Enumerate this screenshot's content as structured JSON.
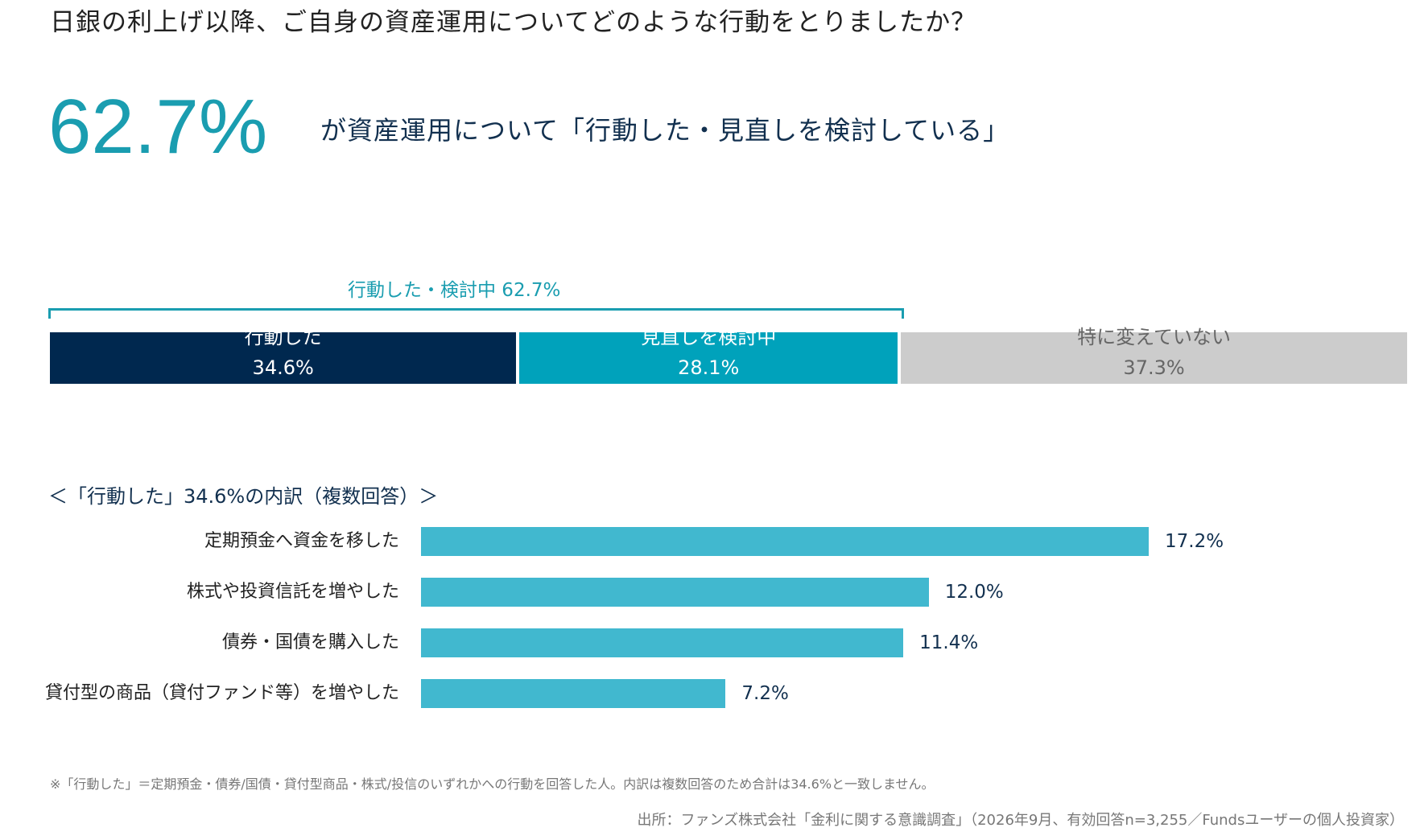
{
  "question": "日銀の利上げ以降、ご自身の資産運用についてどのような行動をとりましたか？",
  "headline": {
    "percent": "62.7%",
    "text": "が資産運用について「行動した・見直しを検討している」"
  },
  "stacked_bar": {
    "bracket_label": "行動した・検討中 62.7%",
    "segments": [
      {
        "label": "行動した",
        "value_label": "34.6%",
        "color": "#00284f"
      },
      {
        "label": "見直しを検討中",
        "value_label": "28.1%",
        "color": "#00a2bb"
      },
      {
        "label": "特に変えていない",
        "value_label": "37.3%",
        "color": "#cccccc",
        "text_color": "#666666"
      }
    ]
  },
  "breakdown_title": "＜「行動した」34.6%の内訳（複数回答）＞",
  "chart_data": [
    {
      "type": "bar",
      "orientation": "horizontal",
      "stacked": true,
      "categories": [
        "行動した",
        "見直しを検討中",
        "特に変えていない"
      ],
      "values": [
        34.6,
        28.1,
        37.3
      ],
      "unit": "%",
      "colors": [
        "#00284f",
        "#00a2bb",
        "#cccccc"
      ],
      "annotation": "行動した・検討中 62.7%"
    },
    {
      "type": "bar",
      "orientation": "horizontal",
      "categories": [
        "定期預金へ資金を移した",
        "株式や投資信託を増やした",
        "債券・国債を購入した",
        "貸付型の商品（貸付ファンド等）を増やした"
      ],
      "values": [
        17.2,
        12.0,
        11.4,
        7.2
      ],
      "value_labels": [
        "17.2%",
        "12.0%",
        "11.4%",
        "7.2%"
      ],
      "unit": "%",
      "color": "#41b8cf",
      "xlim": [
        0,
        20
      ],
      "grid": false
    }
  ],
  "footnote": "※「行動した」＝定期預金・債券/国債・貸付型商品・株式/投信のいずれかへの行動を回答した人。内訳は複数回答のため合計は34.6%と一致しません。",
  "source": "出所：ファンズ株式会社「金利に関する意識調査」（2026年9月、有効回答n=3,255／Fundsユーザーの個人投資家）"
}
